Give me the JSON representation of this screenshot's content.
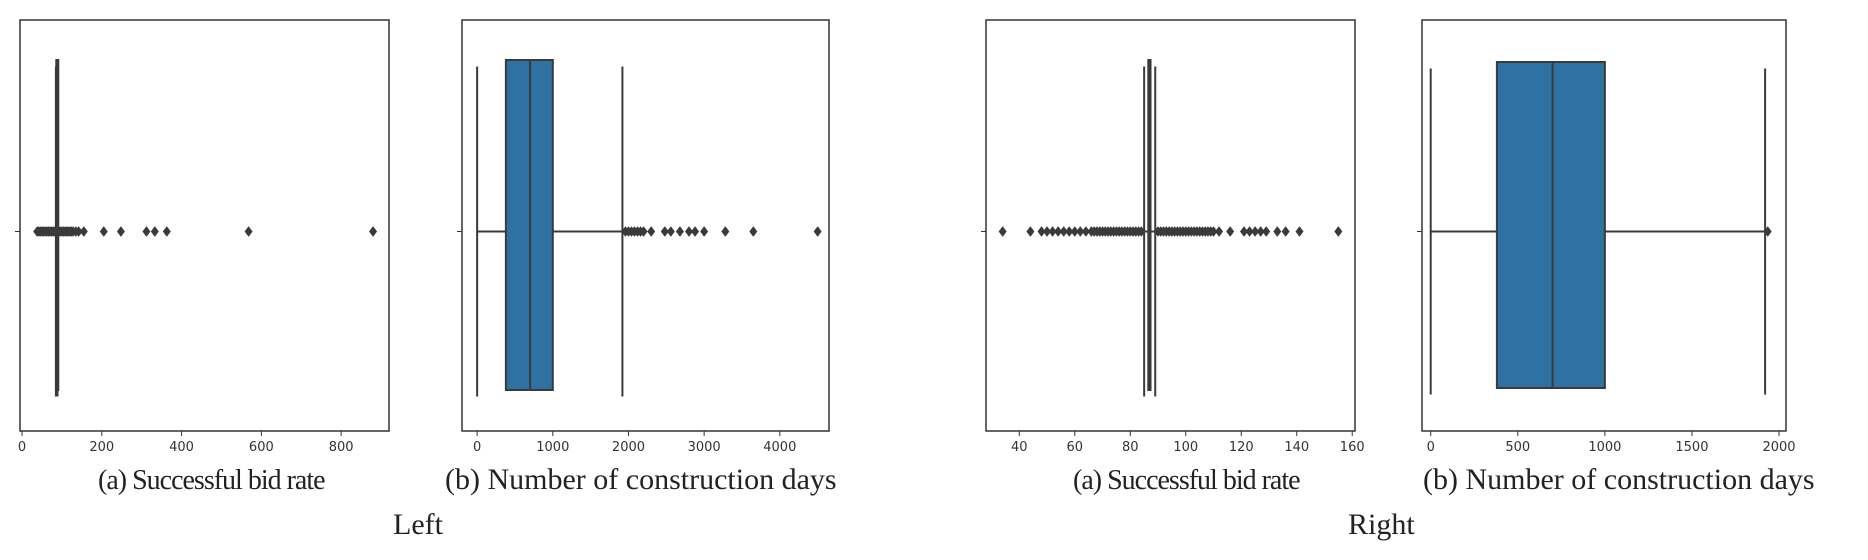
{
  "colors": {
    "box_fill": "#2e72a4",
    "line": "#3a3a3a",
    "frame": "#333333"
  },
  "groups": [
    {
      "label": "Left",
      "caption_a": "(a) Successful bid rate",
      "caption_b": "(b) Number of construction days"
    },
    {
      "label": "Right",
      "caption_a": "(a) Successful bid rate",
      "caption_b": "(b) Number of construction days"
    }
  ],
  "chart_data": [
    {
      "type": "box",
      "group": "Left",
      "panel": "a",
      "orientation": "horizontal",
      "xlim": [
        -5,
        920
      ],
      "xticks": [
        0,
        200,
        400,
        600,
        800
      ],
      "xtick_labels": [
        "0",
        "200",
        "400",
        "600",
        "800"
      ],
      "box": {
        "q1": 86,
        "median": 87,
        "q3": 88,
        "whisker_low": 85,
        "whisker_high": 89
      },
      "outliers": [
        38,
        42,
        46,
        50,
        54,
        58,
        62,
        66,
        70,
        74,
        78,
        82,
        92,
        96,
        100,
        104,
        108,
        112,
        116,
        120,
        124,
        128,
        135,
        142,
        155,
        205,
        248,
        312,
        333,
        363,
        568,
        880
      ]
    },
    {
      "type": "box",
      "group": "Left",
      "panel": "b",
      "orientation": "horizontal",
      "xlim": [
        -200,
        4650
      ],
      "xticks": [
        0,
        1000,
        2000,
        3000,
        4000
      ],
      "xtick_labels": [
        "0",
        "1000",
        "2000",
        "3000",
        "4000"
      ],
      "box": {
        "q1": 380,
        "median": 700,
        "q3": 1000,
        "whisker_low": 0,
        "whisker_high": 1920
      },
      "outliers": [
        1960,
        2000,
        2040,
        2080,
        2120,
        2160,
        2200,
        2300,
        2480,
        2560,
        2680,
        2800,
        2880,
        3000,
        3280,
        3650,
        4500
      ]
    },
    {
      "type": "box",
      "group": "Right",
      "panel": "a",
      "orientation": "horizontal",
      "xlim": [
        28,
        161
      ],
      "xticks": [
        40,
        60,
        80,
        100,
        120,
        140,
        160
      ],
      "xtick_labels": [
        "40",
        "60",
        "80",
        "100",
        "120",
        "140",
        "160"
      ],
      "box": {
        "q1": 86.5,
        "median": 87,
        "q3": 87.3,
        "whisker_low": 85,
        "whisker_high": 89
      },
      "outliers": [
        34,
        44,
        48,
        50,
        52,
        54,
        56,
        58,
        60,
        62,
        64,
        66,
        67,
        68,
        69,
        70,
        71,
        72,
        73,
        74,
        75,
        76,
        77,
        78,
        79,
        80,
        81,
        82,
        83,
        84,
        90,
        91,
        92,
        93,
        94,
        95,
        96,
        97,
        98,
        99,
        100,
        101,
        102,
        103,
        104,
        105,
        106,
        107,
        108,
        109,
        110,
        112,
        116,
        121,
        123,
        125,
        127,
        129,
        133,
        136,
        141,
        155
      ]
    },
    {
      "type": "box",
      "group": "Right",
      "panel": "b",
      "orientation": "horizontal",
      "xlim": [
        -50,
        2040
      ],
      "xticks": [
        0,
        500,
        1000,
        1500,
        2000
      ],
      "xtick_labels": [
        "0",
        "500",
        "1000",
        "1500",
        "2000"
      ],
      "box": {
        "q1": 380,
        "median": 700,
        "q3": 1000,
        "whisker_low": 0,
        "whisker_high": 1920
      },
      "outliers": [
        1935
      ]
    }
  ]
}
